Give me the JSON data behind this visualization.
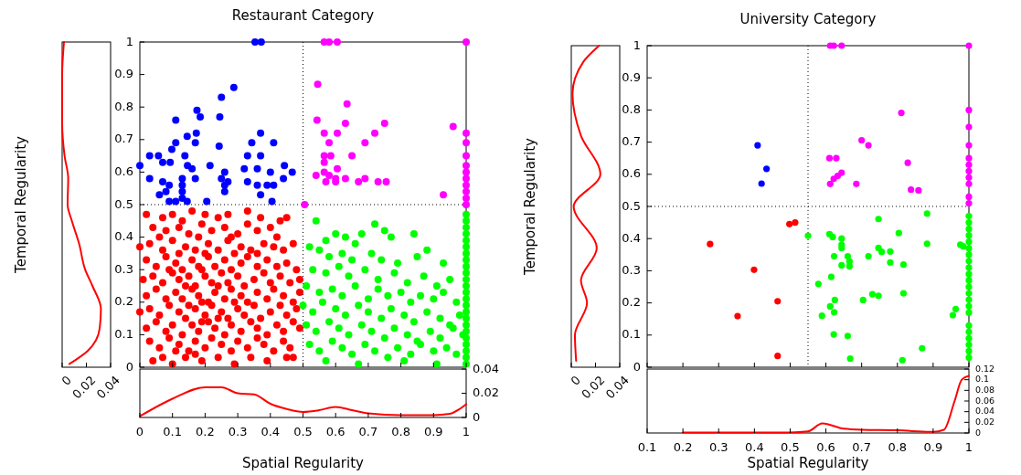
{
  "chart_data": [
    {
      "type": "scatter",
      "title": "Restaurant Category",
      "xlim": [
        0,
        1
      ],
      "ylim": [
        0,
        1
      ],
      "xticks": [
        0,
        0.1,
        0.2,
        0.3,
        0.4,
        0.5,
        0.6,
        0.7,
        0.8,
        0.9,
        1
      ],
      "yticks": [
        0,
        0.1,
        0.2,
        0.3,
        0.4,
        0.5,
        0.6,
        0.7,
        0.8,
        0.9,
        1
      ],
      "tick_labels": "y",
      "marker": "circle",
      "grid": false,
      "ref_lines": [
        {
          "axis": "x",
          "value": 0.5
        },
        {
          "axis": "y",
          "value": 0.5
        }
      ],
      "series": [
        {
          "color": "#ff0000",
          "x": [
            0.02,
            0.07,
            0.1,
            0.16,
            0.2,
            0.27,
            0.33,
            0.37,
            0.43,
            0.45,
            0.13,
            0.24,
            0.04,
            0.08,
            0.12,
            0.15,
            0.19,
            0.22,
            0.26,
            0.3,
            0.33,
            0.36,
            0.4,
            0.06,
            0.18,
            0.28,
            0.42,
            0.0,
            0.03,
            0.07,
            0.1,
            0.14,
            0.17,
            0.21,
            0.24,
            0.27,
            0.31,
            0.34,
            0.38,
            0.41,
            0.44,
            0.47,
            0.12,
            0.2,
            0.29,
            0.36,
            0.02,
            0.05,
            0.08,
            0.11,
            0.13,
            0.16,
            0.18,
            0.21,
            0.23,
            0.26,
            0.28,
            0.31,
            0.33,
            0.36,
            0.39,
            0.42,
            0.45,
            0.48,
            0.19,
            0.09,
            0.01,
            0.04,
            0.07,
            0.1,
            0.12,
            0.15,
            0.17,
            0.2,
            0.22,
            0.25,
            0.27,
            0.3,
            0.32,
            0.35,
            0.38,
            0.4,
            0.43,
            0.46,
            0.49,
            0.14,
            0.24,
            0.02,
            0.05,
            0.08,
            0.11,
            0.13,
            0.16,
            0.18,
            0.21,
            0.23,
            0.26,
            0.28,
            0.31,
            0.33,
            0.36,
            0.39,
            0.41,
            0.44,
            0.47,
            0.49,
            0.19,
            0.29,
            0.0,
            0.03,
            0.06,
            0.09,
            0.12,
            0.14,
            0.17,
            0.2,
            0.22,
            0.25,
            0.27,
            0.3,
            0.32,
            0.35,
            0.37,
            0.4,
            0.43,
            0.45,
            0.48,
            0.15,
            0.24,
            0.02,
            0.05,
            0.08,
            0.1,
            0.13,
            0.16,
            0.18,
            0.21,
            0.23,
            0.26,
            0.28,
            0.31,
            0.34,
            0.36,
            0.39,
            0.42,
            0.44,
            0.47,
            0.49,
            0.19,
            0.03,
            0.06,
            0.09,
            0.12,
            0.15,
            0.17,
            0.2,
            0.22,
            0.25,
            0.28,
            0.3,
            0.33,
            0.36,
            0.38,
            0.41,
            0.44,
            0.46,
            0.11,
            0.04,
            0.07,
            0.1,
            0.14,
            0.19,
            0.24,
            0.29,
            0.34,
            0.39,
            0.45,
            0.47,
            0.17
          ],
          "values": [
            0.47,
            0.46,
            0.47,
            0.48,
            0.47,
            0.47,
            0.48,
            0.46,
            0.45,
            0.46,
            0.45,
            0.46,
            0.43,
            0.42,
            0.43,
            0.41,
            0.44,
            0.42,
            0.43,
            0.41,
            0.44,
            0.42,
            0.43,
            0.4,
            0.4,
            0.4,
            0.4,
            0.37,
            0.38,
            0.36,
            0.39,
            0.37,
            0.36,
            0.38,
            0.36,
            0.39,
            0.37,
            0.36,
            0.38,
            0.37,
            0.36,
            0.38,
            0.35,
            0.35,
            0.35,
            0.35,
            0.33,
            0.31,
            0.34,
            0.32,
            0.3,
            0.33,
            0.31,
            0.34,
            0.31,
            0.33,
            0.3,
            0.32,
            0.34,
            0.31,
            0.33,
            0.31,
            0.32,
            0.3,
            0.3,
            0.3,
            0.27,
            0.28,
            0.26,
            0.29,
            0.27,
            0.28,
            0.25,
            0.28,
            0.26,
            0.29,
            0.26,
            0.28,
            0.25,
            0.27,
            0.29,
            0.26,
            0.28,
            0.26,
            0.27,
            0.25,
            0.25,
            0.22,
            0.24,
            0.21,
            0.23,
            0.21,
            0.24,
            0.22,
            0.2,
            0.23,
            0.21,
            0.24,
            0.22,
            0.2,
            0.23,
            0.21,
            0.24,
            0.22,
            0.2,
            0.23,
            0.2,
            0.2,
            0.17,
            0.18,
            0.16,
            0.19,
            0.17,
            0.15,
            0.18,
            0.16,
            0.19,
            0.17,
            0.15,
            0.18,
            0.16,
            0.19,
            0.15,
            0.17,
            0.19,
            0.16,
            0.18,
            0.19,
            0.15,
            0.12,
            0.14,
            0.11,
            0.13,
            0.1,
            0.13,
            0.11,
            0.14,
            0.12,
            0.1,
            0.13,
            0.11,
            0.14,
            0.12,
            0.1,
            0.13,
            0.11,
            0.14,
            0.12,
            0.14,
            0.08,
            0.06,
            0.09,
            0.07,
            0.05,
            0.08,
            0.06,
            0.09,
            0.07,
            0.05,
            0.08,
            0.06,
            0.09,
            0.07,
            0.05,
            0.08,
            0.06,
            0.05,
            0.02,
            0.03,
            0.01,
            0.03,
            0.02,
            0.03,
            0.01,
            0.03,
            0.02,
            0.03,
            0.03,
            0.04
          ]
        },
        {
          "color": "#00ff00",
          "x": [
            0.54,
            0.57,
            0.6,
            0.63,
            0.66,
            0.72,
            0.75,
            0.68,
            0.77,
            0.84,
            0.88,
            0.52,
            0.55,
            0.58,
            0.62,
            0.65,
            0.71,
            0.74,
            0.79,
            0.85,
            0.93,
            0.53,
            0.57,
            0.61,
            0.64,
            0.69,
            0.73,
            0.78,
            0.82,
            0.87,
            0.91,
            0.95,
            0.51,
            0.55,
            0.59,
            0.62,
            0.66,
            0.7,
            0.73,
            0.76,
            0.8,
            0.83,
            0.86,
            0.9,
            0.93,
            0.97,
            0.5,
            0.53,
            0.56,
            0.6,
            0.63,
            0.67,
            0.7,
            0.74,
            0.77,
            0.81,
            0.84,
            0.88,
            0.92,
            0.95,
            0.98,
            0.51,
            0.54,
            0.58,
            0.61,
            0.64,
            0.68,
            0.71,
            0.75,
            0.78,
            0.82,
            0.85,
            0.89,
            0.92,
            0.96,
            0.99,
            0.52,
            0.55,
            0.59,
            0.62,
            0.65,
            0.69,
            0.72,
            0.76,
            0.79,
            0.83,
            0.86,
            0.9,
            0.94,
            0.97,
            0.57,
            0.67,
            0.81,
            0.91,
            1,
            1,
            1,
            1,
            1,
            1,
            1,
            1,
            1,
            1,
            1,
            1,
            1,
            1,
            1,
            1,
            1,
            1,
            1,
            1,
            1,
            1,
            1,
            1
          ],
          "values": [
            0.45,
            0.39,
            0.41,
            0.4,
            0.38,
            0.44,
            0.42,
            0.41,
            0.4,
            0.41,
            0.36,
            0.37,
            0.36,
            0.34,
            0.35,
            0.33,
            0.35,
            0.33,
            0.32,
            0.34,
            0.32,
            0.3,
            0.29,
            0.31,
            0.28,
            0.3,
            0.27,
            0.29,
            0.26,
            0.28,
            0.25,
            0.27,
            0.25,
            0.23,
            0.24,
            0.22,
            0.25,
            0.21,
            0.24,
            0.22,
            0.23,
            0.2,
            0.22,
            0.21,
            0.23,
            0.2,
            0.19,
            0.17,
            0.2,
            0.18,
            0.16,
            0.19,
            0.17,
            0.15,
            0.18,
            0.16,
            0.14,
            0.17,
            0.15,
            0.13,
            0.16,
            0.13,
            0.11,
            0.14,
            0.12,
            0.1,
            0.13,
            0.11,
            0.09,
            0.12,
            0.1,
            0.08,
            0.11,
            0.09,
            0.12,
            0.1,
            0.07,
            0.05,
            0.08,
            0.06,
            0.04,
            0.07,
            0.05,
            0.03,
            0.06,
            0.04,
            0.07,
            0.05,
            0.06,
            0.04,
            0.02,
            0.01,
            0.02,
            0.01,
            0.01,
            0.03,
            0.05,
            0.07,
            0.09,
            0.11,
            0.13,
            0.15,
            0.17,
            0.19,
            0.21,
            0.23,
            0.25,
            0.27,
            0.29,
            0.31,
            0.33,
            0.35,
            0.37,
            0.39,
            0.41,
            0.43,
            0.45,
            0.47
          ]
        },
        {
          "color": "#0000ff",
          "x": [
            0.353,
            0.372,
            0.288,
            0.25,
            0.175,
            0.185,
            0.245,
            0.11,
            0.173,
            0.37,
            0.145,
            0.11,
            0.17,
            0.343,
            0.41,
            0.243,
            0.098,
            0.03,
            0.057,
            0.138,
            0.33,
            0.37,
            0.07,
            0.093,
            0.215,
            0.443,
            0.146,
            0.16,
            0.26,
            0.32,
            0.36,
            0.4,
            0.467,
            0.0,
            0.03,
            0.07,
            0.13,
            0.17,
            0.25,
            0.27,
            0.33,
            0.36,
            0.39,
            0.41,
            0.44,
            0.09,
            0.13,
            0.26,
            0.08,
            0.13,
            0.26,
            0.37,
            0.06,
            0.13,
            0.09,
            0.11,
            0.145,
            0.205,
            0.405
          ],
          "values": [
            1,
            1,
            0.86,
            0.83,
            0.79,
            0.77,
            0.77,
            0.76,
            0.72,
            0.72,
            0.71,
            0.69,
            0.69,
            0.69,
            0.69,
            0.68,
            0.67,
            0.65,
            0.65,
            0.65,
            0.65,
            0.65,
            0.63,
            0.63,
            0.62,
            0.62,
            0.62,
            0.61,
            0.6,
            0.61,
            0.61,
            0.6,
            0.6,
            0.62,
            0.58,
            0.57,
            0.58,
            0.58,
            0.58,
            0.57,
            0.57,
            0.56,
            0.56,
            0.56,
            0.58,
            0.56,
            0.56,
            0.56,
            0.54,
            0.54,
            0.54,
            0.53,
            0.53,
            0.52,
            0.51,
            0.51,
            0.51,
            0.51,
            0.51
          ]
        },
        {
          "color": "#ff00ff",
          "x": [
            0.565,
            0.58,
            0.605,
            1,
            0.545,
            0.635,
            0.543,
            0.63,
            0.75,
            0.565,
            0.605,
            0.72,
            0.58,
            0.69,
            0.565,
            0.585,
            0.65,
            0.565,
            0.605,
            0.565,
            0.54,
            0.58,
            0.6,
            0.63,
            0.69,
            0.57,
            0.6,
            0.67,
            0.73,
            0.755,
            0.93,
            0.505,
            0.96,
            1,
            1,
            1,
            1,
            1,
            1,
            1,
            1,
            1,
            1
          ],
          "values": [
            1,
            1,
            1,
            1,
            0.87,
            0.81,
            0.76,
            0.75,
            0.75,
            0.72,
            0.72,
            0.72,
            0.69,
            0.69,
            0.65,
            0.65,
            0.65,
            0.63,
            0.61,
            0.6,
            0.59,
            0.59,
            0.58,
            0.58,
            0.58,
            0.57,
            0.57,
            0.57,
            0.57,
            0.57,
            0.53,
            0.5,
            0.74,
            0.72,
            0.69,
            0.65,
            0.62,
            0.6,
            0.58,
            0.56,
            0.54,
            0.52,
            0.5
          ]
        }
      ]
    },
    {
      "type": "line",
      "ylabel": "Temporal Regularity",
      "xlim": [
        0,
        0.04
      ],
      "xticks": [
        0,
        0.02,
        0.04
      ],
      "ylim": [
        0,
        1
      ],
      "tick_labels": "x",
      "grid": false,
      "series": [
        {
          "color": "#ff0000",
          "x": [
            0.006,
            0.021,
            0.031,
            0.032,
            0.025,
            0.019,
            0.014,
            0.008,
            0.0045,
            0.005,
            0.002,
            0,
            0,
            0.0015
          ],
          "values": [
            0.01,
            0.05,
            0.12,
            0.18,
            0.25,
            0.3,
            0.38,
            0.45,
            0.5,
            0.58,
            0.65,
            0.75,
            0.9,
            1
          ]
        }
      ]
    },
    {
      "type": "line",
      "xlabel": "Spatial Regularity",
      "xlim": [
        0,
        1
      ],
      "xticks": [
        0,
        0.1,
        0.2,
        0.3,
        0.4,
        0.5,
        0.6,
        0.7,
        0.8,
        0.9,
        1
      ],
      "ylim": [
        0,
        0.04
      ],
      "yticks": [
        0,
        0.02,
        0.04
      ],
      "grid": false,
      "series": [
        {
          "color": "#ff0000",
          "x": [
            0,
            0.1,
            0.2,
            0.25,
            0.3,
            0.35,
            0.4,
            0.45,
            0.5,
            0.55,
            0.6,
            0.65,
            0.7,
            0.8,
            0.9,
            0.95,
            0.98,
            1
          ],
          "values": [
            0.001,
            0.0155,
            0.025,
            0.025,
            0.02,
            0.019,
            0.0113,
            0.007,
            0.0046,
            0.006,
            0.0087,
            0.006,
            0.0034,
            0.0019,
            0.0019,
            0.003,
            0.007,
            0.011
          ]
        }
      ]
    },
    {
      "type": "scatter",
      "title": "University Category",
      "xlim": [
        0.1,
        1
      ],
      "ylim": [
        0,
        1
      ],
      "xticks": [
        0.1,
        0.2,
        0.3,
        0.4,
        0.5,
        0.6,
        0.7,
        0.8,
        0.9,
        1
      ],
      "yticks": [
        0,
        0.1,
        0.2,
        0.3,
        0.4,
        0.5,
        0.6,
        0.7,
        0.8,
        0.9,
        1
      ],
      "tick_labels": "y",
      "marker": "circle",
      "grid": false,
      "ref_lines": [
        {
          "axis": "x",
          "value": 0.55
        },
        {
          "axis": "y",
          "value": 0.5
        }
      ],
      "series": [
        {
          "color": "#ff0000",
          "x": [
            0.276,
            0.399,
            0.465,
            0.353,
            0.465,
            0.498,
            0.514
          ],
          "values": [
            0.383,
            0.303,
            0.205,
            0.159,
            0.035,
            0.445,
            0.45
          ]
        },
        {
          "color": "#00ff00",
          "x": [
            0.55,
            0.61,
            0.619,
            0.644,
            0.644,
            0.644,
            0.623,
            0.661,
            0.666,
            0.644,
            0.666,
            0.719,
            0.747,
            0.756,
            0.78,
            0.747,
            0.804,
            0.883,
            0.883,
            0.78,
            0.817,
            0.615,
            0.579,
            0.625,
            0.612,
            0.623,
            0.589,
            0.704,
            0.73,
            0.747,
            0.817,
            0.622,
            0.661,
            0.668,
            0.869,
            0.814,
            0.955,
            0.963,
            0.976,
            0.984,
            1,
            1,
            1,
            1,
            1,
            1,
            1,
            1,
            1,
            1,
            1,
            1,
            1,
            1,
            1,
            1,
            1,
            1,
            1,
            1,
            1,
            1
          ],
          "values": [
            0.409,
            0.414,
            0.405,
            0.4,
            0.381,
            0.371,
            0.345,
            0.345,
            0.329,
            0.317,
            0.314,
            0.345,
            0.371,
            0.359,
            0.36,
            0.461,
            0.417,
            0.478,
            0.384,
            0.326,
            0.319,
            0.281,
            0.259,
            0.209,
            0.189,
            0.171,
            0.16,
            0.209,
            0.227,
            0.222,
            0.23,
            0.102,
            0.097,
            0.027,
            0.059,
            0.022,
            0.162,
            0.181,
            0.381,
            0.376,
            0.03,
            0.05,
            0.07,
            0.09,
            0.11,
            0.13,
            0.17,
            0.19,
            0.21,
            0.23,
            0.25,
            0.27,
            0.29,
            0.31,
            0.33,
            0.35,
            0.37,
            0.39,
            0.41,
            0.43,
            0.45,
            0.47
          ]
        },
        {
          "color": "#0000ff",
          "x": [
            0.409,
            0.434,
            0.42
          ],
          "values": [
            0.69,
            0.617,
            0.571
          ]
        },
        {
          "color": "#ff00ff",
          "x": [
            0.612,
            0.622,
            0.644,
            1,
            0.811,
            0.7,
            0.719,
            0.61,
            0.629,
            0.829,
            0.644,
            0.633,
            0.622,
            0.612,
            0.685,
            0.838,
            0.859,
            1,
            1,
            1,
            1,
            1,
            1,
            1,
            1,
            1,
            1
          ],
          "values": [
            1,
            1,
            1,
            1,
            0.791,
            0.706,
            0.69,
            0.65,
            0.65,
            0.636,
            0.605,
            0.595,
            0.586,
            0.57,
            0.57,
            0.552,
            0.55,
            0.8,
            0.747,
            0.69,
            0.65,
            0.63,
            0.61,
            0.59,
            0.57,
            0.53,
            0.51
          ]
        }
      ]
    },
    {
      "type": "line",
      "ylabel": "Temporal Regularity",
      "xlim": [
        0,
        0.04
      ],
      "xticks": [
        0,
        0.02,
        0.04
      ],
      "ylim": [
        0,
        1
      ],
      "tick_labels": "x",
      "grid": false,
      "series": [
        {
          "color": "#ff0000",
          "x": [
            0.004,
            0.003,
            0.013,
            0.008,
            0.021,
            0.002,
            0.024,
            0.008,
            0.001,
            0.01,
            0.023
          ],
          "values": [
            0.02,
            0.1,
            0.2,
            0.27,
            0.37,
            0.5,
            0.6,
            0.72,
            0.85,
            0.95,
            1
          ]
        }
      ]
    },
    {
      "type": "line",
      "xlabel": "Spatial Regularity",
      "xlim": [
        0.1,
        1
      ],
      "xticks": [
        0.1,
        0.2,
        0.3,
        0.4,
        0.5,
        0.6,
        0.7,
        0.8,
        0.9,
        1
      ],
      "ylim": [
        0,
        0.12
      ],
      "yticks": [
        0,
        0.02,
        0.04,
        0.06,
        0.08,
        0.1,
        0.12
      ],
      "grid": false,
      "series": [
        {
          "color": "#ff0000",
          "x": [
            0.2,
            0.5,
            0.55,
            0.59,
            0.65,
            0.7,
            0.8,
            0.9,
            0.93,
            0.96,
            0.98,
            1
          ],
          "values": [
            0.001,
            0.001,
            0.003,
            0.018,
            0.008,
            0.006,
            0.005,
            0.002,
            0.006,
            0.06,
            0.1,
            0.107
          ]
        }
      ]
    }
  ]
}
